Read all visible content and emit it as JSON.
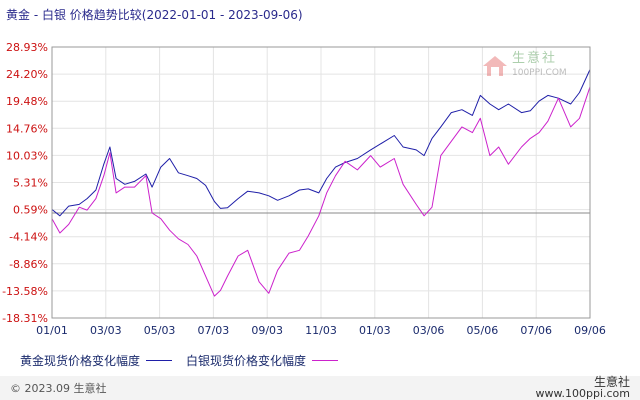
{
  "header": {
    "title": "黄金 - 白银 价格趋势比较(2022-01-01 - 2023-09-06)"
  },
  "watermark": {
    "brand": "生意社",
    "url": "100PPI.COM"
  },
  "footer": {
    "copyright": "© 2023.09 生意社",
    "brand": "生意社",
    "url": "www.100ppi.com"
  },
  "colors": {
    "gold": "#1f1fa8",
    "silver": "#cc22cc",
    "zero_line": "#888888"
  },
  "chart_data": {
    "type": "line",
    "title": "",
    "xlabel": "",
    "ylabel": "",
    "ylim": [
      -18.31,
      28.93
    ],
    "x_range": [
      "2022-01-01",
      "2023-09-06"
    ],
    "y_ticks": [
      "28.93%",
      "24.20%",
      "19.48%",
      "14.76%",
      "10.03%",
      "5.31%",
      "0.59%",
      "-4.14%",
      "-8.86%",
      "-13.58%",
      "-18.31%"
    ],
    "x_ticks": [
      "01/01",
      "03/03",
      "05/03",
      "07/03",
      "09/03",
      "11/03",
      "01/03",
      "03/06",
      "05/06",
      "07/06",
      "09/06"
    ],
    "series": [
      {
        "name": "黄金现货价格变化幅度",
        "color": "#1f1fa8",
        "x": [
          "2022-01-01",
          "2022-01-10",
          "2022-01-20",
          "2022-02-01",
          "2022-02-10",
          "2022-02-20",
          "2022-03-01",
          "2022-03-08",
          "2022-03-15",
          "2022-03-25",
          "2022-04-05",
          "2022-04-18",
          "2022-04-25",
          "2022-05-05",
          "2022-05-15",
          "2022-05-25",
          "2022-06-05",
          "2022-06-15",
          "2022-06-25",
          "2022-07-05",
          "2022-07-12",
          "2022-07-20",
          "2022-08-01",
          "2022-08-12",
          "2022-08-25",
          "2022-09-05",
          "2022-09-15",
          "2022-09-28",
          "2022-10-10",
          "2022-10-20",
          "2022-11-01",
          "2022-11-10",
          "2022-11-20",
          "2022-12-01",
          "2022-12-15",
          "2022-12-30",
          "2023-01-10",
          "2023-01-26",
          "2023-02-05",
          "2023-02-20",
          "2023-03-01",
          "2023-03-10",
          "2023-03-20",
          "2023-04-01",
          "2023-04-13",
          "2023-04-25",
          "2023-05-04",
          "2023-05-15",
          "2023-05-25",
          "2023-06-05",
          "2023-06-20",
          "2023-06-30",
          "2023-07-10",
          "2023-07-20",
          "2023-08-01",
          "2023-08-15",
          "2023-08-25",
          "2023-09-06"
        ],
        "values": [
          0.6,
          -0.5,
          1.2,
          1.5,
          2.5,
          4.0,
          8.5,
          11.5,
          6.0,
          5.0,
          5.5,
          6.8,
          4.5,
          8.0,
          9.5,
          7.0,
          6.5,
          6.0,
          4.8,
          2.0,
          0.8,
          0.9,
          2.5,
          3.8,
          3.5,
          3.0,
          2.2,
          3.0,
          4.0,
          4.2,
          3.5,
          6.0,
          8.0,
          8.8,
          9.5,
          11.0,
          12.0,
          13.5,
          11.5,
          11.0,
          10.0,
          13.0,
          15.0,
          17.5,
          18.0,
          17.0,
          20.5,
          19.0,
          18.0,
          19.0,
          17.5,
          17.8,
          19.5,
          20.5,
          20.0,
          19.0,
          21.0,
          25.0
        ]
      },
      {
        "name": "白银现货价格变化幅度",
        "color": "#cc22cc",
        "x": [
          "2022-01-01",
          "2022-01-10",
          "2022-01-20",
          "2022-02-01",
          "2022-02-10",
          "2022-02-20",
          "2022-03-01",
          "2022-03-08",
          "2022-03-15",
          "2022-03-25",
          "2022-04-05",
          "2022-04-18",
          "2022-04-25",
          "2022-05-05",
          "2022-05-15",
          "2022-05-25",
          "2022-06-05",
          "2022-06-15",
          "2022-06-25",
          "2022-07-05",
          "2022-07-12",
          "2022-07-20",
          "2022-08-01",
          "2022-08-12",
          "2022-08-25",
          "2022-09-05",
          "2022-09-15",
          "2022-09-28",
          "2022-10-10",
          "2022-10-20",
          "2022-11-01",
          "2022-11-10",
          "2022-11-20",
          "2022-12-01",
          "2022-12-15",
          "2022-12-30",
          "2023-01-10",
          "2023-01-26",
          "2023-02-05",
          "2023-02-20",
          "2023-03-01",
          "2023-03-10",
          "2023-03-20",
          "2023-04-01",
          "2023-04-13",
          "2023-04-25",
          "2023-05-04",
          "2023-05-15",
          "2023-05-25",
          "2023-06-05",
          "2023-06-20",
          "2023-06-30",
          "2023-07-10",
          "2023-07-20",
          "2023-08-01",
          "2023-08-15",
          "2023-08-25",
          "2023-09-06"
        ],
        "values": [
          -1.0,
          -3.5,
          -2.0,
          1.0,
          0.5,
          2.5,
          6.5,
          10.5,
          3.5,
          4.5,
          4.5,
          6.5,
          0.0,
          -1.0,
          -3.0,
          -4.5,
          -5.5,
          -7.5,
          -11.0,
          -14.5,
          -13.5,
          -11.0,
          -7.5,
          -6.5,
          -12.0,
          -14.0,
          -10.0,
          -7.0,
          -6.5,
          -4.0,
          -0.5,
          3.5,
          6.5,
          9.0,
          7.5,
          10.0,
          8.0,
          9.5,
          5.0,
          1.5,
          -0.5,
          1.0,
          10.0,
          12.5,
          15.0,
          14.0,
          16.5,
          10.0,
          11.5,
          8.5,
          11.5,
          13.0,
          14.0,
          16.0,
          20.0,
          15.0,
          16.5,
          22.0
        ]
      }
    ]
  }
}
